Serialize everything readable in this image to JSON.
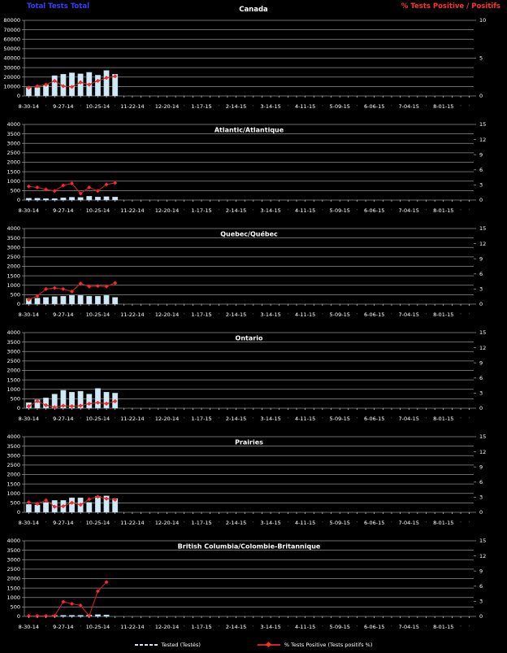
{
  "colors": {
    "background": "#000000",
    "grid": "#8f8f8f",
    "text": "#ffffff",
    "bar": "#cfe9f5",
    "bar_border": "#9fc8dc",
    "line": "#d42020",
    "marker": "#ff2a2a",
    "header_left": "#3a3aff",
    "header_right": "#ff3030"
  },
  "header": {
    "left_axis_title": "Total Tests Total",
    "right_axis_title": "% Tests Positive / Positifs"
  },
  "legend": {
    "tests": "Tested (Testés)",
    "positive": "% Tests Positive (Tests positifs %)"
  },
  "chart_data": {
    "type": "bar+line small multiples",
    "title": "RSV laboratory detections by region",
    "ylabel_left": "Total Tests Total",
    "ylabel_right": "% Tests Positive / Positifs",
    "legend_position": "bottom",
    "grid": true,
    "x": {
      "weeks": 52,
      "tick_label_every": 4,
      "tick_labels": [
        "8-30-14",
        "9-27-14",
        "10-25-14",
        "11-22-14",
        "12-20-14",
        "1-17-15",
        "2-14-15",
        "3-14-15",
        "4-11-15",
        "5-09-15",
        "6-06-15",
        "7-04-15",
        "8-01-15"
      ]
    },
    "charts": [
      {
        "title": "Canada",
        "title_in_header": true,
        "left_max": 80000,
        "right_max": 10,
        "left_labels": [
          "80000",
          "70000",
          "60000",
          "50000",
          "40000",
          "30000",
          "20000",
          "10000",
          "0"
        ],
        "right_labels": [
          "10",
          "5",
          "0"
        ],
        "bars": [
          9000,
          9000,
          12000,
          21500,
          23000,
          24500,
          23500,
          25000,
          22000,
          27000,
          23000
        ],
        "line": [
          1.1,
          1.3,
          1.5,
          2.0,
          1.3,
          1.2,
          1.8,
          1.5,
          2.0,
          2.4,
          2.6
        ]
      },
      {
        "title": "Atlantic/Atlantique",
        "title_in_header": false,
        "left_max": 4000,
        "right_max": 15,
        "left_labels": [
          "4000",
          "3500",
          "3000",
          "2500",
          "2000",
          "1500",
          "1000",
          "500",
          "0"
        ],
        "right_labels": [
          "15",
          "12",
          "9",
          "6",
          "3",
          "0"
        ],
        "bars": [
          100,
          100,
          80,
          80,
          120,
          150,
          140,
          200,
          160,
          180,
          160
        ],
        "line": [
          2.7,
          2.5,
          2.1,
          1.8,
          2.9,
          3.3,
          1.3,
          2.5,
          1.8,
          3.1,
          3.4
        ]
      },
      {
        "title": "Quebec/Québec",
        "title_in_header": false,
        "left_max": 4000,
        "right_max": 15,
        "left_labels": [
          "4000",
          "3500",
          "3000",
          "2500",
          "2000",
          "1500",
          "1000",
          "500",
          "0"
        ],
        "right_labels": [
          "15",
          "12",
          "9",
          "6",
          "3",
          "0"
        ],
        "bars": [
          300,
          320,
          360,
          400,
          425,
          465,
          465,
          425,
          425,
          465,
          360
        ],
        "line": [
          0.9,
          1.6,
          3.0,
          3.2,
          3.0,
          2.5,
          4.1,
          3.5,
          3.6,
          3.5,
          4.2
        ]
      },
      {
        "title": "Ontario",
        "title_in_header": false,
        "left_max": 4000,
        "right_max": 15,
        "left_labels": [
          "4000",
          "3500",
          "3000",
          "2500",
          "2000",
          "1500",
          "1000",
          "500",
          "0"
        ],
        "right_labels": [
          "15",
          "12",
          "9",
          "6",
          "3",
          "0"
        ],
        "bars": [
          300,
          450,
          550,
          750,
          950,
          850,
          900,
          750,
          1050,
          850,
          800
        ],
        "line": [
          0.4,
          1.4,
          0.6,
          0.2,
          0.5,
          0.4,
          0.5,
          0.9,
          1.1,
          0.9,
          1.4
        ]
      },
      {
        "title": "Prairies",
        "title_in_header": false,
        "left_max": 4000,
        "right_max": 15,
        "left_labels": [
          "4000",
          "3500",
          "3000",
          "2500",
          "2000",
          "1500",
          "1000",
          "500",
          "0"
        ],
        "right_labels": [
          "15",
          "12",
          "9",
          "6",
          "3",
          "0"
        ],
        "bars": [
          420,
          390,
          530,
          630,
          630,
          770,
          770,
          530,
          840,
          870,
          730
        ],
        "line": [
          2.0,
          1.7,
          2.4,
          1.1,
          1.2,
          1.9,
          1.5,
          2.6,
          3.1,
          2.7,
          2.5
        ]
      },
      {
        "title": "British Columbia/Colombie-Britannique",
        "title_in_header": false,
        "left_max": 4000,
        "right_max": 15,
        "left_labels": [
          "4000",
          "3500",
          "3000",
          "2500",
          "2000",
          "1500",
          "1000",
          "500",
          "0"
        ],
        "right_labels": [
          "15",
          "12",
          "9",
          "6",
          "3",
          "0"
        ],
        "bars": [
          0,
          0,
          0,
          60,
          60,
          60,
          60,
          80,
          100,
          80
        ],
        "line": [
          0.1,
          0.1,
          0.1,
          0.1,
          2.9,
          2.5,
          2.2,
          0.1,
          5.0,
          6.8
        ]
      }
    ]
  }
}
